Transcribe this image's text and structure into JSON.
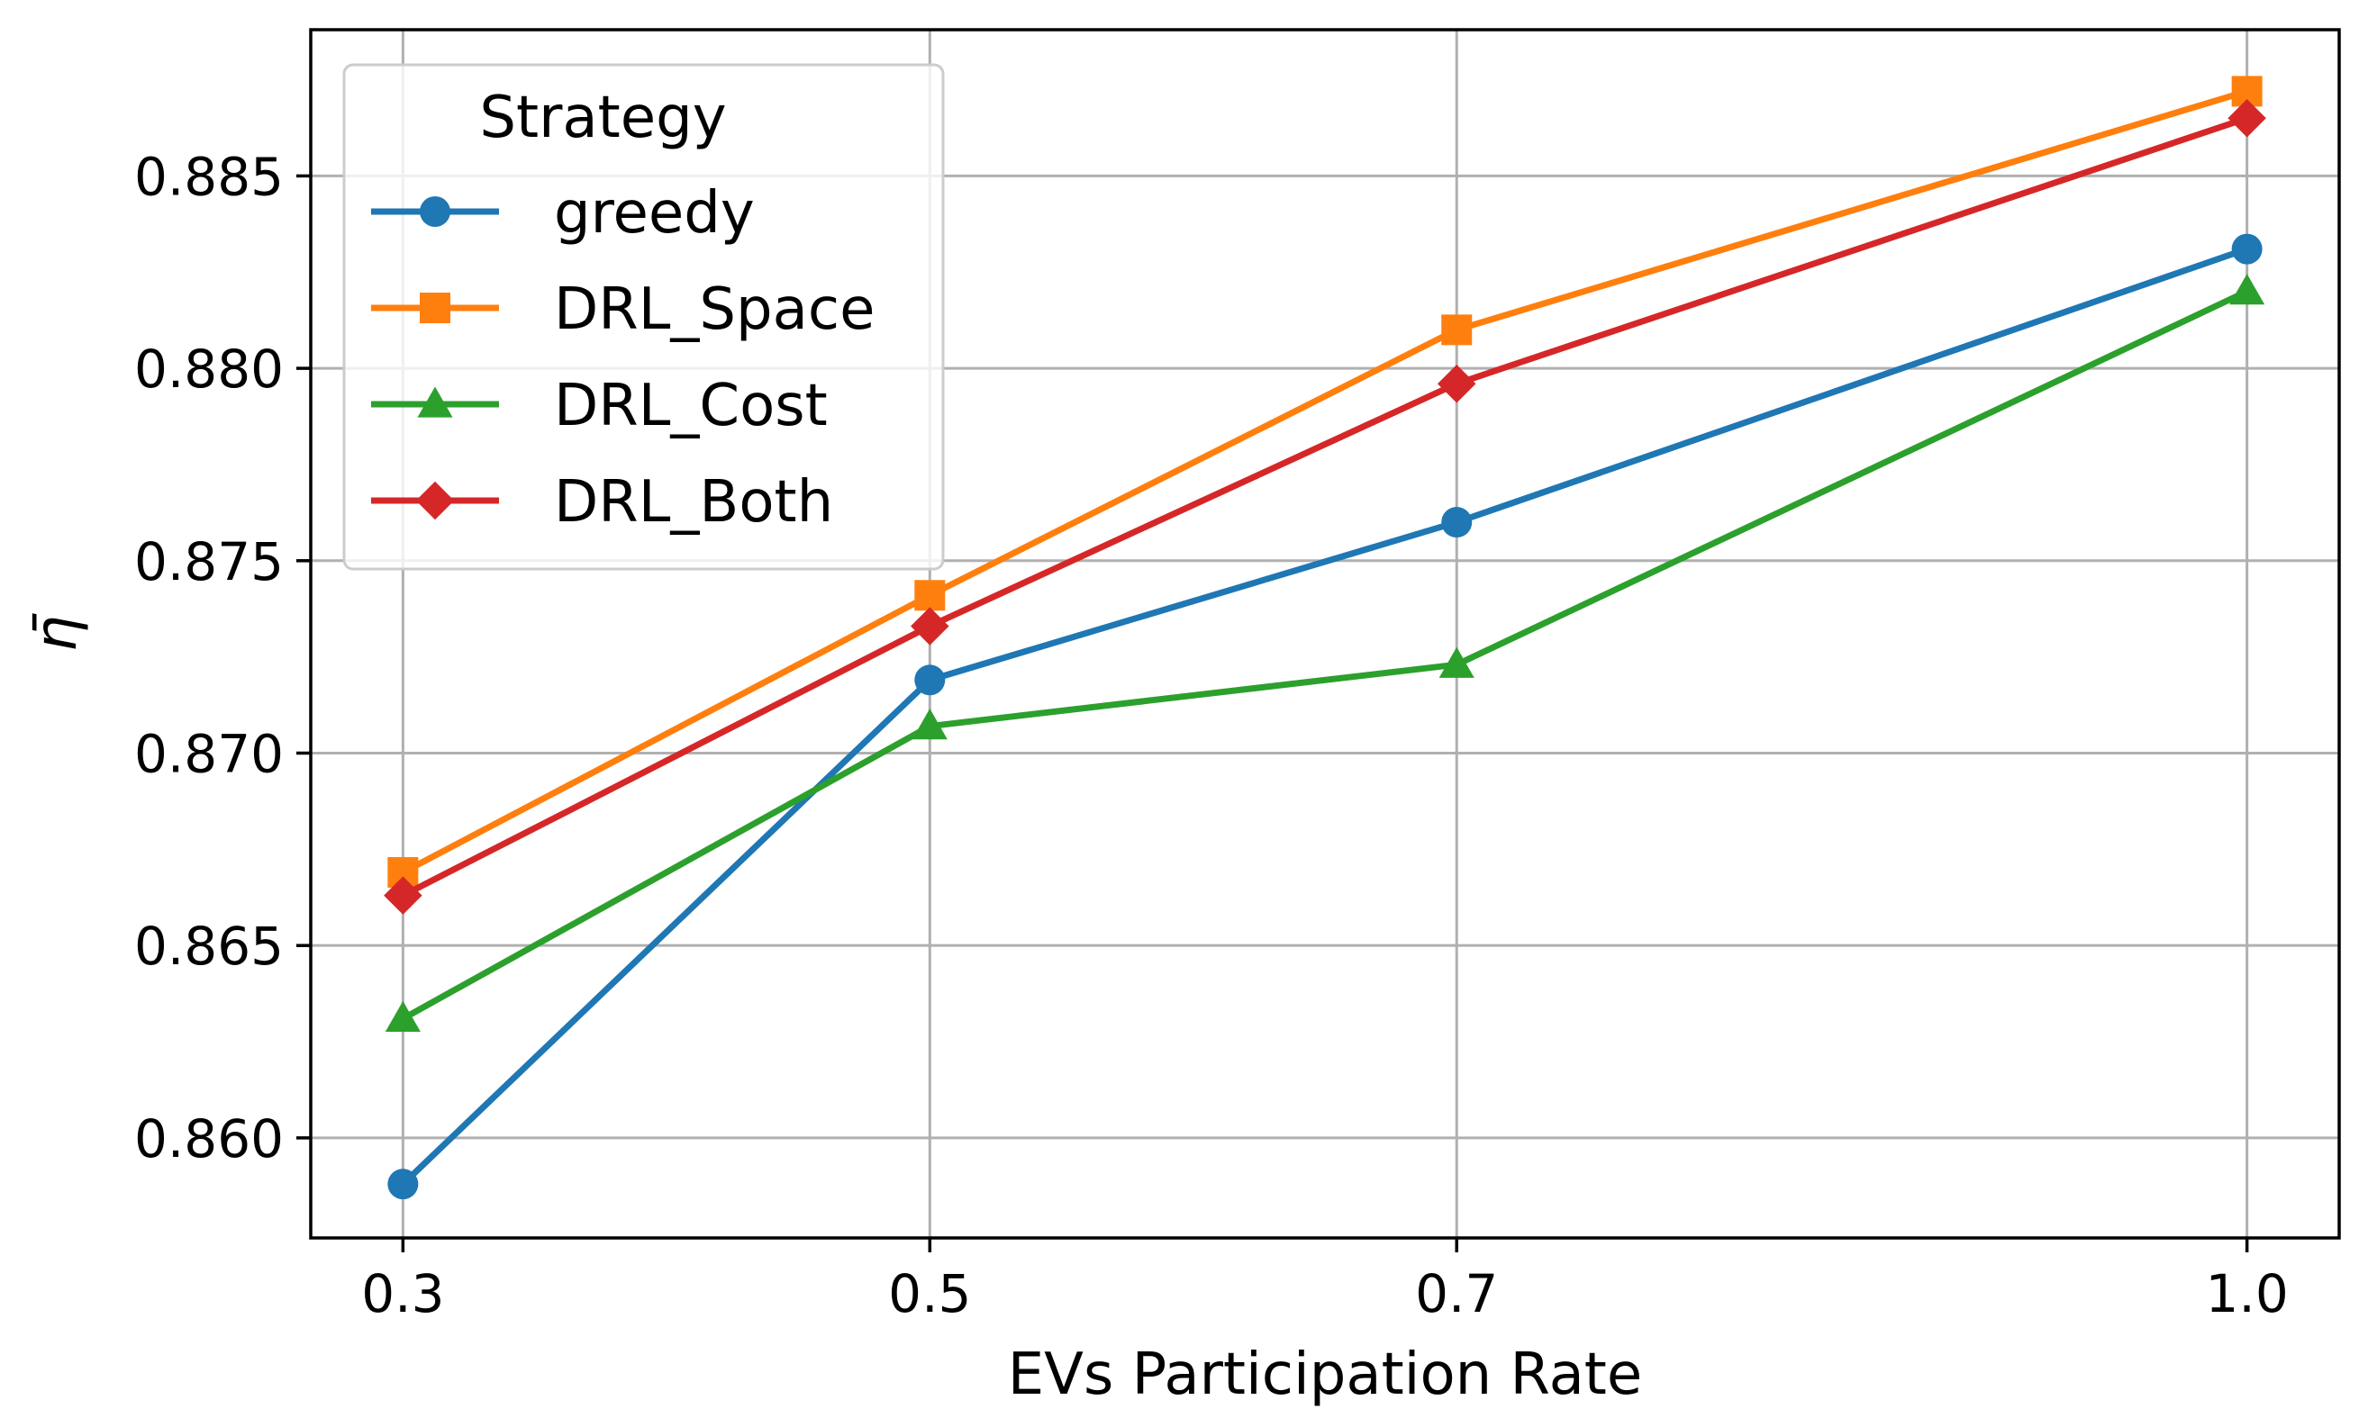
{
  "chart_data": {
    "type": "line",
    "title": "",
    "xlabel": "EVs Participation Rate",
    "ylabel": "η̄",
    "x": [
      0.3,
      0.5,
      0.7,
      1.0
    ],
    "xtick_labels": [
      "0.3",
      "0.5",
      "0.7",
      "1.0"
    ],
    "xlim": [
      0.265,
      1.035
    ],
    "ylim": [
      0.8574,
      0.8888
    ],
    "yticks": [
      0.86,
      0.865,
      0.87,
      0.875,
      0.88,
      0.885
    ],
    "ytick_labels": [
      "0.860",
      "0.865",
      "0.870",
      "0.875",
      "0.880",
      "0.885"
    ],
    "grid": true,
    "legend": {
      "title": "Strategy",
      "placement": "top-left"
    },
    "series": [
      {
        "name": "greedy",
        "color": "#1f77b4",
        "marker": "circle",
        "values": [
          0.8588,
          0.8719,
          0.876,
          0.8831
        ]
      },
      {
        "name": "DRL_Space",
        "color": "#ff7f0e",
        "marker": "square",
        "values": [
          0.8669,
          0.8741,
          0.881,
          0.8872
        ]
      },
      {
        "name": "DRL_Cost",
        "color": "#2ca02c",
        "marker": "triangle",
        "values": [
          0.8631,
          0.8707,
          0.8723,
          0.882
        ]
      },
      {
        "name": "DRL_Both",
        "color": "#d62728",
        "marker": "diamond",
        "values": [
          0.8663,
          0.8733,
          0.8796,
          0.8865
        ]
      }
    ]
  }
}
